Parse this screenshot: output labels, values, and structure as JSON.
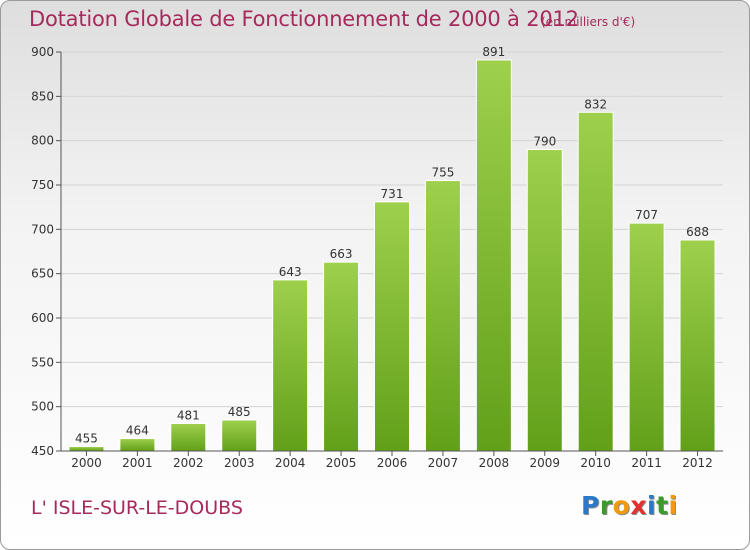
{
  "header": {
    "title": "Dotation Globale de Fonctionnement de 2000 à 2012",
    "unit": "(en milliers d'€)"
  },
  "footer": {
    "commune": "L' ISLE-SUR-LE-DOUBS",
    "logo": [
      {
        "char": "P",
        "color": "#2a78c8"
      },
      {
        "char": "r",
        "color": "#3a9a2a"
      },
      {
        "char": "o",
        "color": "#f09a10"
      },
      {
        "char": "x",
        "color": "#e03030"
      },
      {
        "char": "i",
        "color": "#2a78c8"
      },
      {
        "char": "t",
        "color": "#3a9a2a"
      },
      {
        "char": "i",
        "color": "#f09a10"
      }
    ]
  },
  "colors": {
    "title": "#a62a5c",
    "bar_top": "#9ed04c",
    "bar_bottom": "#62a01a",
    "grid": "#d4d4d4",
    "axis_text": "#333333"
  },
  "chart_data": {
    "type": "bar",
    "categories": [
      "2000",
      "2001",
      "2002",
      "2003",
      "2004",
      "2005",
      "2006",
      "2007",
      "2008",
      "2009",
      "2010",
      "2011",
      "2012"
    ],
    "values": [
      455,
      464,
      481,
      485,
      643,
      663,
      731,
      755,
      891,
      790,
      832,
      707,
      688
    ],
    "data_labels": [
      "455",
      "464",
      "481",
      "485",
      "643",
      "663",
      "731",
      "755",
      "891",
      "790",
      "832",
      "707",
      "688"
    ],
    "ylim": [
      450,
      900
    ],
    "yticks": [
      450,
      500,
      550,
      600,
      650,
      700,
      750,
      800,
      850,
      900
    ],
    "grid": true,
    "legend": "none"
  }
}
